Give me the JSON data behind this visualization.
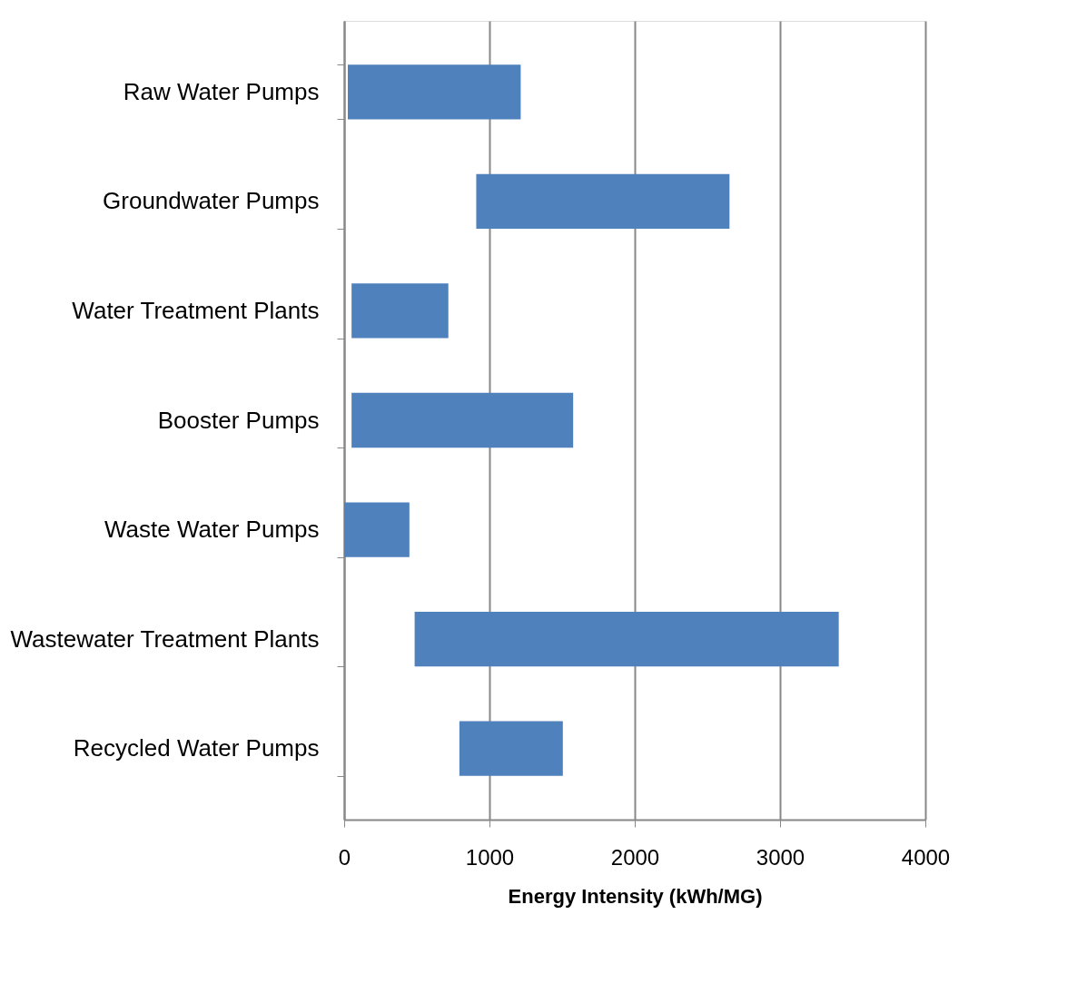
{
  "chart_data": {
    "type": "bar",
    "orientation": "horizontal",
    "xlabel": "Energy Intensity (kWh/MG)",
    "categories": [
      "Raw Water Pumps",
      "Groundwater Pumps",
      "Water Treatment Plants",
      "Booster Pumps",
      "Waste Water Pumps",
      "Wastewater Treatment Plants",
      "Recycled Water Pumps"
    ],
    "base": [
      25,
      909,
      51,
      51,
      0,
      485,
      793
    ],
    "values": [
      1190,
      1743,
      666,
      1525,
      449,
      2919,
      712
    ],
    "color": "#4f81bd",
    "xlim": [
      0,
      4000
    ],
    "xticks": [
      0,
      1000,
      2000,
      3000,
      4000
    ],
    "grid": "x"
  }
}
